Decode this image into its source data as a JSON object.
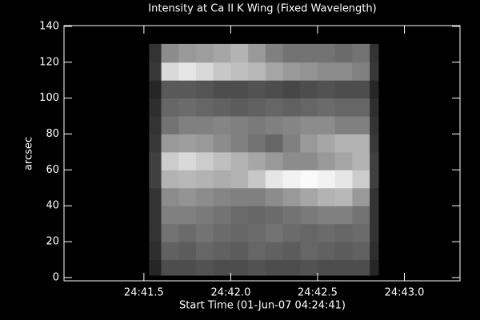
{
  "chart_data": {
    "type": "heatmap",
    "title": "Intensity at Ca II K Wing (Fixed Wavelength)",
    "x_label": "Start Time (01-Jun-07 04:24:41)",
    "y_label": "arcsec",
    "xlim": [
      41.04,
      43.32
    ],
    "ylim": [
      -1.8,
      140.4
    ],
    "xticks": [
      {
        "value": 41.5,
        "label": "24:41.5"
      },
      {
        "value": 42.0,
        "label": "24:42.0"
      },
      {
        "value": 42.5,
        "label": "24:42.5"
      },
      {
        "value": 43.0,
        "label": "24:43.0"
      }
    ],
    "yticks": [
      0,
      20,
      40,
      60,
      80,
      100,
      120,
      140
    ],
    "x_edges": [
      41.53,
      41.6,
      41.7,
      41.8,
      41.9,
      42.0,
      42.1,
      42.2,
      42.3,
      42.4,
      42.5,
      42.6,
      42.7,
      42.8,
      42.85
    ],
    "y_edges": [
      1.3,
      10,
      20,
      30,
      40,
      50,
      60,
      70,
      80,
      90,
      100,
      110,
      120,
      130.2
    ],
    "z": [
      [
        0.15,
        0.3,
        0.3,
        0.32,
        0.3,
        0.3,
        0.32,
        0.3,
        0.3,
        0.32,
        0.3,
        0.3,
        0.3,
        0.15
      ],
      [
        0.18,
        0.38,
        0.36,
        0.4,
        0.38,
        0.36,
        0.4,
        0.38,
        0.36,
        0.4,
        0.38,
        0.36,
        0.38,
        0.18
      ],
      [
        0.2,
        0.45,
        0.42,
        0.45,
        0.42,
        0.4,
        0.42,
        0.45,
        0.42,
        0.4,
        0.42,
        0.4,
        0.42,
        0.2
      ],
      [
        0.2,
        0.5,
        0.5,
        0.48,
        0.45,
        0.42,
        0.4,
        0.42,
        0.45,
        0.48,
        0.5,
        0.5,
        0.45,
        0.2
      ],
      [
        0.2,
        0.55,
        0.58,
        0.55,
        0.52,
        0.5,
        0.5,
        0.55,
        0.6,
        0.65,
        0.7,
        0.72,
        0.6,
        0.2
      ],
      [
        0.25,
        0.7,
        0.72,
        0.7,
        0.68,
        0.7,
        0.78,
        0.9,
        0.95,
        0.98,
        0.95,
        0.9,
        0.8,
        0.25
      ],
      [
        0.25,
        0.8,
        0.85,
        0.8,
        0.75,
        0.7,
        0.65,
        0.6,
        0.55,
        0.55,
        0.6,
        0.65,
        0.7,
        0.25
      ],
      [
        0.22,
        0.6,
        0.62,
        0.6,
        0.55,
        0.5,
        0.45,
        0.4,
        0.5,
        0.6,
        0.65,
        0.7,
        0.7,
        0.22
      ],
      [
        0.2,
        0.45,
        0.5,
        0.5,
        0.52,
        0.5,
        0.48,
        0.5,
        0.52,
        0.55,
        0.55,
        0.5,
        0.5,
        0.2
      ],
      [
        0.18,
        0.4,
        0.42,
        0.4,
        0.38,
        0.36,
        0.38,
        0.4,
        0.38,
        0.4,
        0.42,
        0.4,
        0.4,
        0.18
      ],
      [
        0.15,
        0.35,
        0.35,
        0.33,
        0.3,
        0.3,
        0.32,
        0.3,
        0.28,
        0.3,
        0.32,
        0.3,
        0.3,
        0.15
      ],
      [
        0.22,
        0.85,
        0.9,
        0.85,
        0.78,
        0.75,
        0.72,
        0.65,
        0.6,
        0.58,
        0.55,
        0.55,
        0.5,
        0.22
      ],
      [
        0.2,
        0.55,
        0.6,
        0.62,
        0.65,
        0.7,
        0.6,
        0.5,
        0.45,
        0.45,
        0.45,
        0.42,
        0.45,
        0.2
      ]
    ],
    "background": "#000000",
    "foreground": "#ffffff"
  }
}
